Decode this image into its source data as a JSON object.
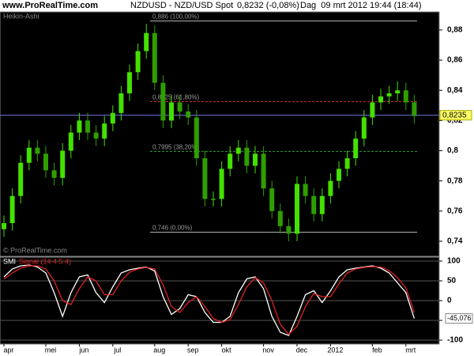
{
  "header": {
    "site": "www.ProRealTime.com",
    "title": "NZDUSD - NZD/USD Spot",
    "quote": "0,8232 (-0,08%)",
    "period": "Dag  09 mrt 2012 19:44 (18:44)"
  },
  "chart_data": [
    {
      "type": "candlestick",
      "label": "Heikin-Ashi",
      "credit": "© ProRealTime.com",
      "categories": [
        "apr",
        null,
        null,
        null,
        null,
        "mei",
        null,
        null,
        null,
        "jun",
        null,
        null,
        null,
        "jul",
        null,
        null,
        null,
        null,
        "aug",
        null,
        null,
        null,
        "sep",
        null,
        null,
        null,
        "okt",
        null,
        null,
        null,
        null,
        "nov",
        null,
        null,
        null,
        "dec",
        null,
        null,
        null,
        "2012",
        null,
        null,
        null,
        null,
        "feb",
        null,
        null,
        null,
        "mrt",
        null
      ],
      "open": [
        0.748,
        0.752,
        0.77,
        0.792,
        0.802,
        0.798,
        0.787,
        0.782,
        0.8,
        0.812,
        0.82,
        0.812,
        0.808,
        0.818,
        0.825,
        0.838,
        0.852,
        0.866,
        0.878,
        0.845,
        0.82,
        0.832,
        0.826,
        0.822,
        0.795,
        0.768,
        0.768,
        0.788,
        0.798,
        0.802,
        0.79,
        0.798,
        0.775,
        0.76,
        0.75,
        0.745,
        0.778,
        0.77,
        0.758,
        0.77,
        0.78,
        0.788,
        0.795,
        0.808,
        0.822,
        0.832,
        0.836,
        0.838,
        0.84,
        0.832
      ],
      "high": [
        0.757,
        0.775,
        0.797,
        0.807,
        0.807,
        0.803,
        0.792,
        0.805,
        0.817,
        0.825,
        0.825,
        0.817,
        0.823,
        0.83,
        0.843,
        0.857,
        0.871,
        0.884,
        0.883,
        0.85,
        0.837,
        0.837,
        0.831,
        0.827,
        0.8,
        0.773,
        0.793,
        0.803,
        0.807,
        0.807,
        0.803,
        0.803,
        0.78,
        0.765,
        0.755,
        0.783,
        0.783,
        0.775,
        0.775,
        0.785,
        0.793,
        0.8,
        0.813,
        0.827,
        0.837,
        0.841,
        0.843,
        0.846,
        0.845,
        0.837
      ],
      "low": [
        0.743,
        0.747,
        0.765,
        0.787,
        0.793,
        0.782,
        0.777,
        0.777,
        0.795,
        0.807,
        0.807,
        0.803,
        0.803,
        0.813,
        0.82,
        0.833,
        0.847,
        0.861,
        0.84,
        0.815,
        0.815,
        0.821,
        0.817,
        0.79,
        0.763,
        0.763,
        0.763,
        0.783,
        0.793,
        0.785,
        0.785,
        0.77,
        0.755,
        0.745,
        0.74,
        0.74,
        0.765,
        0.753,
        0.753,
        0.765,
        0.775,
        0.783,
        0.79,
        0.803,
        0.817,
        0.827,
        0.831,
        0.833,
        0.827,
        0.818
      ],
      "close": [
        0.752,
        0.77,
        0.792,
        0.802,
        0.798,
        0.787,
        0.782,
        0.8,
        0.812,
        0.82,
        0.812,
        0.808,
        0.818,
        0.825,
        0.838,
        0.852,
        0.866,
        0.878,
        0.845,
        0.82,
        0.832,
        0.826,
        0.822,
        0.795,
        0.768,
        0.768,
        0.788,
        0.798,
        0.802,
        0.79,
        0.798,
        0.775,
        0.76,
        0.75,
        0.745,
        0.778,
        0.77,
        0.758,
        0.77,
        0.78,
        0.788,
        0.795,
        0.808,
        0.822,
        0.832,
        0.836,
        0.838,
        0.84,
        0.832,
        0.823
      ],
      "up_color": "#44e000",
      "down_color": "#2f9e00",
      "ylim": [
        0.73,
        0.892
      ],
      "yticks": [
        {
          "value": 0.74,
          "label": "0,74"
        },
        {
          "value": 0.76,
          "label": "0,76"
        },
        {
          "value": 0.78,
          "label": "0,78"
        },
        {
          "value": 0.8,
          "label": "0,8"
        },
        {
          "value": 0.82,
          "label": "0,82"
        },
        {
          "value": 0.84,
          "label": "0,84"
        },
        {
          "value": 0.86,
          "label": "0,86"
        },
        {
          "value": 0.88,
          "label": "0,88"
        }
      ],
      "current": {
        "value": 0.8235,
        "label": "0,8235",
        "color": "#7070e0"
      },
      "levels": [
        {
          "value": 0.886,
          "label": "0,886 (100,00%)",
          "color": "#b0b0b0",
          "dashed": false
        },
        {
          "value": 0.8325,
          "label": "0,8325 (61,80%)",
          "color": "#c03030",
          "dashed": true
        },
        {
          "value": 0.7995,
          "label": "0,7995 (38,20%)",
          "color": "#30a030",
          "dashed": true
        },
        {
          "value": 0.746,
          "label": "0,746 (0,00%)",
          "color": "#b0b0b0",
          "dashed": false
        }
      ]
    },
    {
      "type": "line",
      "series": [
        {
          "name": "SMI",
          "color": "#ffffff",
          "values": [
            60,
            80,
            88,
            90,
            85,
            70,
            20,
            -40,
            20,
            60,
            65,
            20,
            -5,
            35,
            70,
            78,
            82,
            85,
            75,
            10,
            -35,
            -20,
            15,
            10,
            -30,
            -55,
            -55,
            -40,
            20,
            55,
            60,
            30,
            -40,
            -80,
            -88,
            -40,
            15,
            25,
            -5,
            25,
            60,
            78,
            82,
            85,
            88,
            82,
            70,
            45,
            20,
            -45.076
          ]
        },
        {
          "name": "Signal (14 4 5 4)",
          "color": "#e02020",
          "values": [
            55,
            70,
            82,
            88,
            88,
            80,
            50,
            0,
            -10,
            30,
            60,
            50,
            15,
            15,
            50,
            72,
            80,
            84,
            80,
            40,
            -15,
            -30,
            -5,
            10,
            -15,
            -45,
            -55,
            -48,
            -10,
            35,
            58,
            45,
            0,
            -60,
            -85,
            -65,
            -15,
            18,
            10,
            10,
            42,
            70,
            80,
            84,
            86,
            85,
            76,
            58,
            32,
            -30
          ]
        }
      ],
      "ylim": [
        -110,
        110
      ],
      "yticks": [
        -100,
        -50,
        0,
        50,
        100
      ],
      "current": {
        "value": -45.076,
        "label": "-45,076"
      }
    }
  ]
}
